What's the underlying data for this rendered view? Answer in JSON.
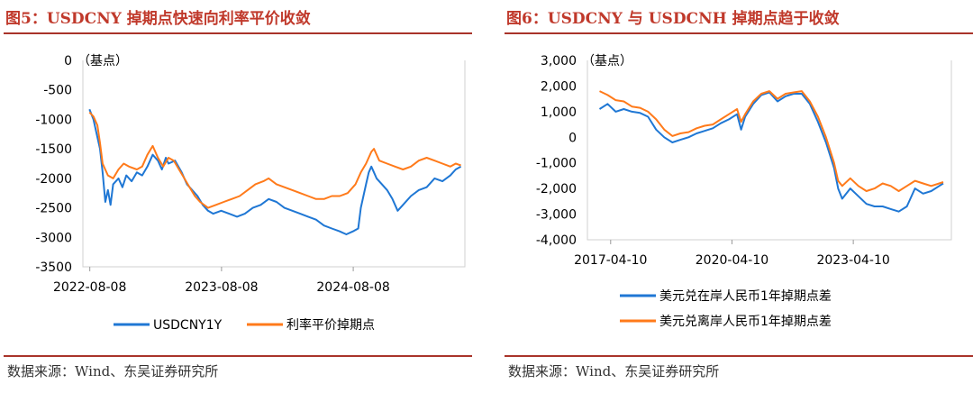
{
  "colors": {
    "title": "#c0392b",
    "rule": "#a9342a",
    "blue": "#1f77d4",
    "orange": "#ff7a1a"
  },
  "panels": [
    {
      "title": "图5：USDCNY 掉期点快速向利率平价收敛",
      "source": "数据来源：Wind、东吴证券研究所"
    },
    {
      "title": "图6：USDCNY 与 USDCNH 掉期点趋于收敛",
      "source": "数据来源：Wind、东吴证券研究所"
    }
  ],
  "chart_data": [
    {
      "type": "line",
      "unit_label": "（基点）",
      "x_ticks": [
        "2022-08-08",
        "2023-08-08",
        "2024-08-08"
      ],
      "y_ticks": [
        "0",
        "-500",
        "-1000",
        "-1500",
        "-2000",
        "-2500",
        "-3000",
        "-3500"
      ],
      "ylim": [
        -3500,
        0
      ],
      "xlim": [
        2022.55,
        2025.45
      ],
      "grid": false,
      "legend_position": "bottom",
      "series": [
        {
          "name": "USDCNY1Y",
          "color": "#1f77d4",
          "points": [
            [
              2022.6,
              -830
            ],
            [
              2022.63,
              -1000
            ],
            [
              2022.66,
              -1300
            ],
            [
              2022.68,
              -1500
            ],
            [
              2022.7,
              -1900
            ],
            [
              2022.72,
              -2400
            ],
            [
              2022.74,
              -2200
            ],
            [
              2022.76,
              -2450
            ],
            [
              2022.78,
              -2100
            ],
            [
              2022.82,
              -2000
            ],
            [
              2022.85,
              -2150
            ],
            [
              2022.88,
              -1950
            ],
            [
              2022.92,
              -2050
            ],
            [
              2022.96,
              -1900
            ],
            [
              2023.0,
              -1950
            ],
            [
              2023.04,
              -1800
            ],
            [
              2023.08,
              -1600
            ],
            [
              2023.12,
              -1700
            ],
            [
              2023.15,
              -1850
            ],
            [
              2023.18,
              -1650
            ],
            [
              2023.2,
              -1750
            ],
            [
              2023.25,
              -1700
            ],
            [
              2023.3,
              -1900
            ],
            [
              2023.34,
              -2100
            ],
            [
              2023.38,
              -2200
            ],
            [
              2023.42,
              -2300
            ],
            [
              2023.46,
              -2450
            ],
            [
              2023.5,
              -2550
            ],
            [
              2023.54,
              -2600
            ],
            [
              2023.6,
              -2550
            ],
            [
              2023.66,
              -2600
            ],
            [
              2023.72,
              -2650
            ],
            [
              2023.78,
              -2600
            ],
            [
              2023.84,
              -2500
            ],
            [
              2023.9,
              -2450
            ],
            [
              2023.96,
              -2350
            ],
            [
              2024.02,
              -2400
            ],
            [
              2024.08,
              -2500
            ],
            [
              2024.14,
              -2550
            ],
            [
              2024.2,
              -2600
            ],
            [
              2024.26,
              -2650
            ],
            [
              2024.32,
              -2700
            ],
            [
              2024.38,
              -2800
            ],
            [
              2024.44,
              -2850
            ],
            [
              2024.5,
              -2900
            ],
            [
              2024.55,
              -2950
            ],
            [
              2024.6,
              -2900
            ],
            [
              2024.64,
              -2850
            ],
            [
              2024.66,
              -2500
            ],
            [
              2024.68,
              -2300
            ],
            [
              2024.7,
              -2100
            ],
            [
              2024.72,
              -1900
            ],
            [
              2024.74,
              -1800
            ],
            [
              2024.76,
              -1900
            ],
            [
              2024.78,
              -2000
            ],
            [
              2024.82,
              -2100
            ],
            [
              2024.86,
              -2200
            ],
            [
              2024.9,
              -2350
            ],
            [
              2024.94,
              -2550
            ],
            [
              2024.98,
              -2450
            ],
            [
              2025.04,
              -2300
            ],
            [
              2025.1,
              -2200
            ],
            [
              2025.16,
              -2150
            ],
            [
              2025.22,
              -2000
            ],
            [
              2025.28,
              -2050
            ],
            [
              2025.34,
              -1950
            ],
            [
              2025.38,
              -1850
            ],
            [
              2025.42,
              -1800
            ]
          ]
        },
        {
          "name": "利率平价掉期点",
          "color": "#ff7a1a",
          "points": [
            [
              2022.6,
              -880
            ],
            [
              2022.63,
              -950
            ],
            [
              2022.66,
              -1100
            ],
            [
              2022.68,
              -1400
            ],
            [
              2022.7,
              -1750
            ],
            [
              2022.74,
              -1950
            ],
            [
              2022.78,
              -2000
            ],
            [
              2022.82,
              -1850
            ],
            [
              2022.86,
              -1750
            ],
            [
              2022.9,
              -1800
            ],
            [
              2022.96,
              -1850
            ],
            [
              2023.0,
              -1800
            ],
            [
              2023.04,
              -1600
            ],
            [
              2023.08,
              -1450
            ],
            [
              2023.12,
              -1650
            ],
            [
              2023.16,
              -1800
            ],
            [
              2023.2,
              -1650
            ],
            [
              2023.24,
              -1700
            ],
            [
              2023.28,
              -1850
            ],
            [
              2023.32,
              -2000
            ],
            [
              2023.36,
              -2150
            ],
            [
              2023.4,
              -2300
            ],
            [
              2023.44,
              -2400
            ],
            [
              2023.5,
              -2500
            ],
            [
              2023.56,
              -2450
            ],
            [
              2023.62,
              -2400
            ],
            [
              2023.68,
              -2350
            ],
            [
              2023.74,
              -2300
            ],
            [
              2023.8,
              -2200
            ],
            [
              2023.86,
              -2100
            ],
            [
              2023.92,
              -2050
            ],
            [
              2023.96,
              -2000
            ],
            [
              2024.02,
              -2100
            ],
            [
              2024.08,
              -2150
            ],
            [
              2024.14,
              -2200
            ],
            [
              2024.2,
              -2250
            ],
            [
              2024.26,
              -2300
            ],
            [
              2024.32,
              -2350
            ],
            [
              2024.38,
              -2350
            ],
            [
              2024.44,
              -2300
            ],
            [
              2024.5,
              -2300
            ],
            [
              2024.56,
              -2250
            ],
            [
              2024.62,
              -2100
            ],
            [
              2024.66,
              -1900
            ],
            [
              2024.7,
              -1750
            ],
            [
              2024.74,
              -1550
            ],
            [
              2024.76,
              -1500
            ],
            [
              2024.8,
              -1700
            ],
            [
              2024.86,
              -1750
            ],
            [
              2024.92,
              -1800
            ],
            [
              2024.98,
              -1850
            ],
            [
              2025.04,
              -1800
            ],
            [
              2025.1,
              -1700
            ],
            [
              2025.16,
              -1650
            ],
            [
              2025.22,
              -1700
            ],
            [
              2025.28,
              -1750
            ],
            [
              2025.34,
              -1800
            ],
            [
              2025.38,
              -1750
            ],
            [
              2025.42,
              -1780
            ]
          ]
        }
      ]
    },
    {
      "type": "line",
      "unit_label": "（基点）",
      "x_ticks": [
        "2017-04-10",
        "2020-04-10",
        "2023-04-10"
      ],
      "y_ticks": [
        "3,000",
        "2,000",
        "1,000",
        "0",
        "-1,000",
        "-2,000",
        "-3,000",
        "-4,000"
      ],
      "ylim": [
        -4000,
        3000
      ],
      "xlim": [
        2016.7,
        2025.7
      ],
      "grid": false,
      "legend_position": "bottom",
      "series": [
        {
          "name": "美元兑在岸人民币1年掉期点差",
          "color": "#1f77d4",
          "points": [
            [
              2017.0,
              1100
            ],
            [
              2017.2,
              1300
            ],
            [
              2017.4,
              1000
            ],
            [
              2017.6,
              1100
            ],
            [
              2017.8,
              1000
            ],
            [
              2018.0,
              950
            ],
            [
              2018.2,
              800
            ],
            [
              2018.4,
              300
            ],
            [
              2018.6,
              0
            ],
            [
              2018.8,
              -200
            ],
            [
              2019.0,
              -100
            ],
            [
              2019.2,
              0
            ],
            [
              2019.4,
              150
            ],
            [
              2019.6,
              250
            ],
            [
              2019.8,
              350
            ],
            [
              2020.0,
              550
            ],
            [
              2020.2,
              700
            ],
            [
              2020.4,
              900
            ],
            [
              2020.5,
              300
            ],
            [
              2020.6,
              800
            ],
            [
              2020.8,
              1300
            ],
            [
              2021.0,
              1650
            ],
            [
              2021.2,
              1750
            ],
            [
              2021.4,
              1400
            ],
            [
              2021.6,
              1600
            ],
            [
              2021.8,
              1700
            ],
            [
              2022.0,
              1700
            ],
            [
              2022.1,
              1500
            ],
            [
              2022.2,
              1300
            ],
            [
              2022.4,
              600
            ],
            [
              2022.6,
              -200
            ],
            [
              2022.8,
              -1200
            ],
            [
              2022.9,
              -2000
            ],
            [
              2023.0,
              -2400
            ],
            [
              2023.2,
              -2000
            ],
            [
              2023.4,
              -2300
            ],
            [
              2023.6,
              -2600
            ],
            [
              2023.8,
              -2700
            ],
            [
              2024.0,
              -2700
            ],
            [
              2024.2,
              -2800
            ],
            [
              2024.4,
              -2900
            ],
            [
              2024.6,
              -2700
            ],
            [
              2024.8,
              -2000
            ],
            [
              2025.0,
              -2200
            ],
            [
              2025.2,
              -2100
            ],
            [
              2025.4,
              -1900
            ],
            [
              2025.5,
              -1800
            ]
          ]
        },
        {
          "name": "美元兑离岸人民币1年掉期点差",
          "color": "#ff7a1a",
          "points": [
            [
              2017.0,
              1800
            ],
            [
              2017.2,
              1650
            ],
            [
              2017.4,
              1450
            ],
            [
              2017.6,
              1400
            ],
            [
              2017.8,
              1200
            ],
            [
              2018.0,
              1150
            ],
            [
              2018.2,
              1000
            ],
            [
              2018.4,
              700
            ],
            [
              2018.6,
              300
            ],
            [
              2018.8,
              50
            ],
            [
              2019.0,
              150
            ],
            [
              2019.2,
              200
            ],
            [
              2019.4,
              350
            ],
            [
              2019.6,
              450
            ],
            [
              2019.8,
              500
            ],
            [
              2020.0,
              700
            ],
            [
              2020.2,
              900
            ],
            [
              2020.4,
              1100
            ],
            [
              2020.5,
              600
            ],
            [
              2020.6,
              900
            ],
            [
              2020.8,
              1400
            ],
            [
              2021.0,
              1700
            ],
            [
              2021.2,
              1800
            ],
            [
              2021.4,
              1500
            ],
            [
              2021.6,
              1700
            ],
            [
              2021.8,
              1750
            ],
            [
              2022.0,
              1800
            ],
            [
              2022.1,
              1600
            ],
            [
              2022.2,
              1400
            ],
            [
              2022.4,
              800
            ],
            [
              2022.6,
              0
            ],
            [
              2022.8,
              -1000
            ],
            [
              2022.9,
              -1700
            ],
            [
              2023.0,
              -1900
            ],
            [
              2023.2,
              -1600
            ],
            [
              2023.4,
              -1900
            ],
            [
              2023.6,
              -2100
            ],
            [
              2023.8,
              -2000
            ],
            [
              2024.0,
              -1800
            ],
            [
              2024.2,
              -1900
            ],
            [
              2024.4,
              -2100
            ],
            [
              2024.6,
              -1900
            ],
            [
              2024.8,
              -1700
            ],
            [
              2025.0,
              -1800
            ],
            [
              2025.2,
              -1900
            ],
            [
              2025.4,
              -1800
            ],
            [
              2025.5,
              -1750
            ]
          ]
        }
      ]
    }
  ]
}
